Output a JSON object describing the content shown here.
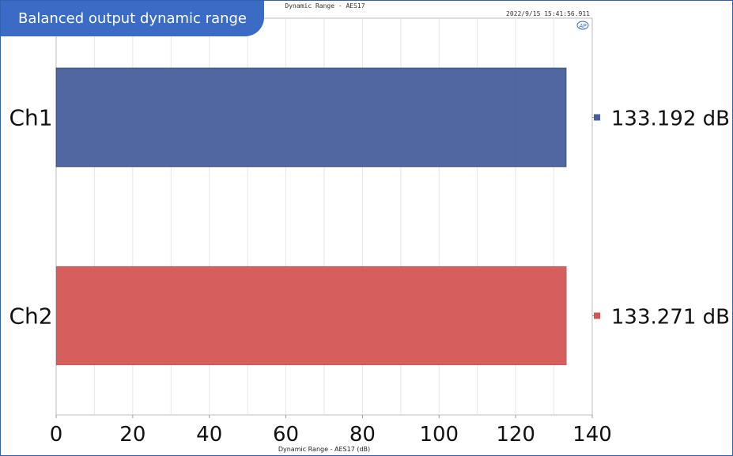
{
  "badge": {
    "label": "Balanced output dynamic range"
  },
  "chart_data": {
    "type": "bar",
    "orientation": "horizontal",
    "title": "Dynamic Range - AES17",
    "timestamp": "2022/9/15 15:41:56.911",
    "logo": "AP",
    "xlabel": "Dynamic Range - AES17 (dB)",
    "xlim": [
      0,
      140
    ],
    "xticks": [
      "0",
      "20",
      "40",
      "60",
      "80",
      "100",
      "120",
      "140"
    ],
    "categories": [
      "Ch1",
      "Ch2"
    ],
    "values": [
      133.192,
      133.271
    ],
    "value_labels": [
      "133.192 dB",
      "133.271 dB"
    ],
    "colors": [
      "#475f9c",
      "#d45553"
    ],
    "grid": true
  }
}
